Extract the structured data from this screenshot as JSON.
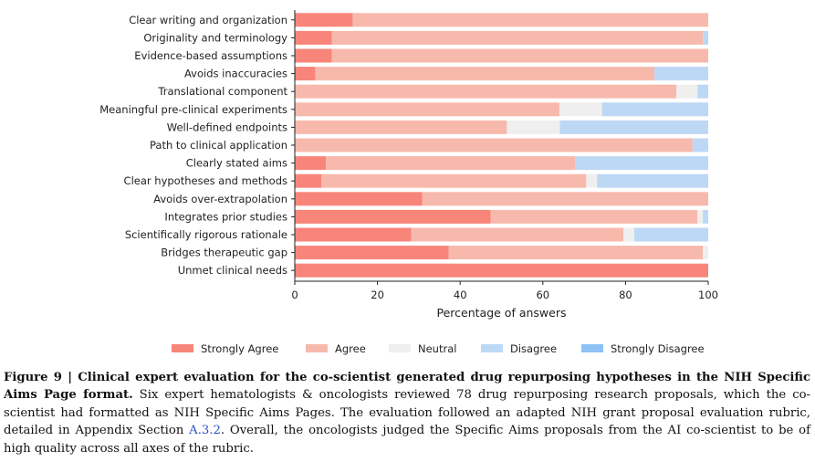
{
  "chart_data": {
    "type": "bar",
    "orientation": "horizontal",
    "stacked": true,
    "xlabel": "Percentage of answers",
    "xlim": [
      0,
      100
    ],
    "xticks": [
      "0",
      "20",
      "40",
      "60",
      "80",
      "100"
    ],
    "legend_position": "bottom",
    "categories": [
      "Clear writing and organization",
      "Originality and terminology",
      "Evidence-based assumptions",
      "Avoids inaccuracies",
      "Translational component",
      "Meaningful pre-clinical experiments",
      "Well-defined endpoints",
      "Path to clinical application",
      "Clearly stated aims",
      "Clear hypotheses and methods",
      "Avoids over-extrapolation",
      "Integrates prior studies",
      "Scientifically rigorous rationale",
      "Bridges therapeutic gap",
      "Unmet clinical needs"
    ],
    "series": [
      {
        "name": "Strongly Agree",
        "color": "#f8857a",
        "values": [
          14,
          9,
          9,
          5,
          0,
          0,
          0,
          0,
          7.5,
          6.4,
          30.8,
          47.4,
          28.2,
          37.2,
          100
        ]
      },
      {
        "name": "Agree",
        "color": "#f8b9ad",
        "values": [
          86,
          89.7,
          91,
          82,
          92.3,
          64,
          51.3,
          96.2,
          60.3,
          64.1,
          69.2,
          50,
          51.3,
          61.5,
          0
        ]
      },
      {
        "name": "Neutral",
        "color": "#efefef",
        "values": [
          0,
          0,
          0,
          0,
          5.1,
          10.3,
          12.8,
          0,
          0,
          2.6,
          0,
          1.3,
          2.6,
          1.3,
          0
        ]
      },
      {
        "name": "Disagree",
        "color": "#bdd8f5",
        "values": [
          0,
          1.3,
          0,
          13,
          2.6,
          25.7,
          35.9,
          3.8,
          32.2,
          26.9,
          0,
          1.3,
          17.9,
          0,
          0
        ]
      },
      {
        "name": "Strongly Disagree",
        "color": "#8cc2f6",
        "values": [
          0,
          0,
          0,
          0,
          0,
          0,
          0,
          0,
          0,
          0,
          0,
          0,
          0,
          0,
          0
        ]
      }
    ]
  },
  "caption": {
    "label": "Figure 9 | Clinical expert evaluation for the co-scientist generated drug repurposing hypotheses in the NIH Specific Aims Page format.",
    "text_before_link": " Six expert hematologists & oncologists reviewed 78 drug repurposing research proposals, which the co-scientist had formatted as NIH Specific Aims Pages. The evaluation followed an adapted NIH grant proposal evaluation rubric, detailed in Appendix Section ",
    "link": "A.3.2",
    "text_after_link": ". Overall, the oncologists judged the Specific Aims proposals from the AI co-scientist to be of high quality across all axes of the rubric."
  }
}
